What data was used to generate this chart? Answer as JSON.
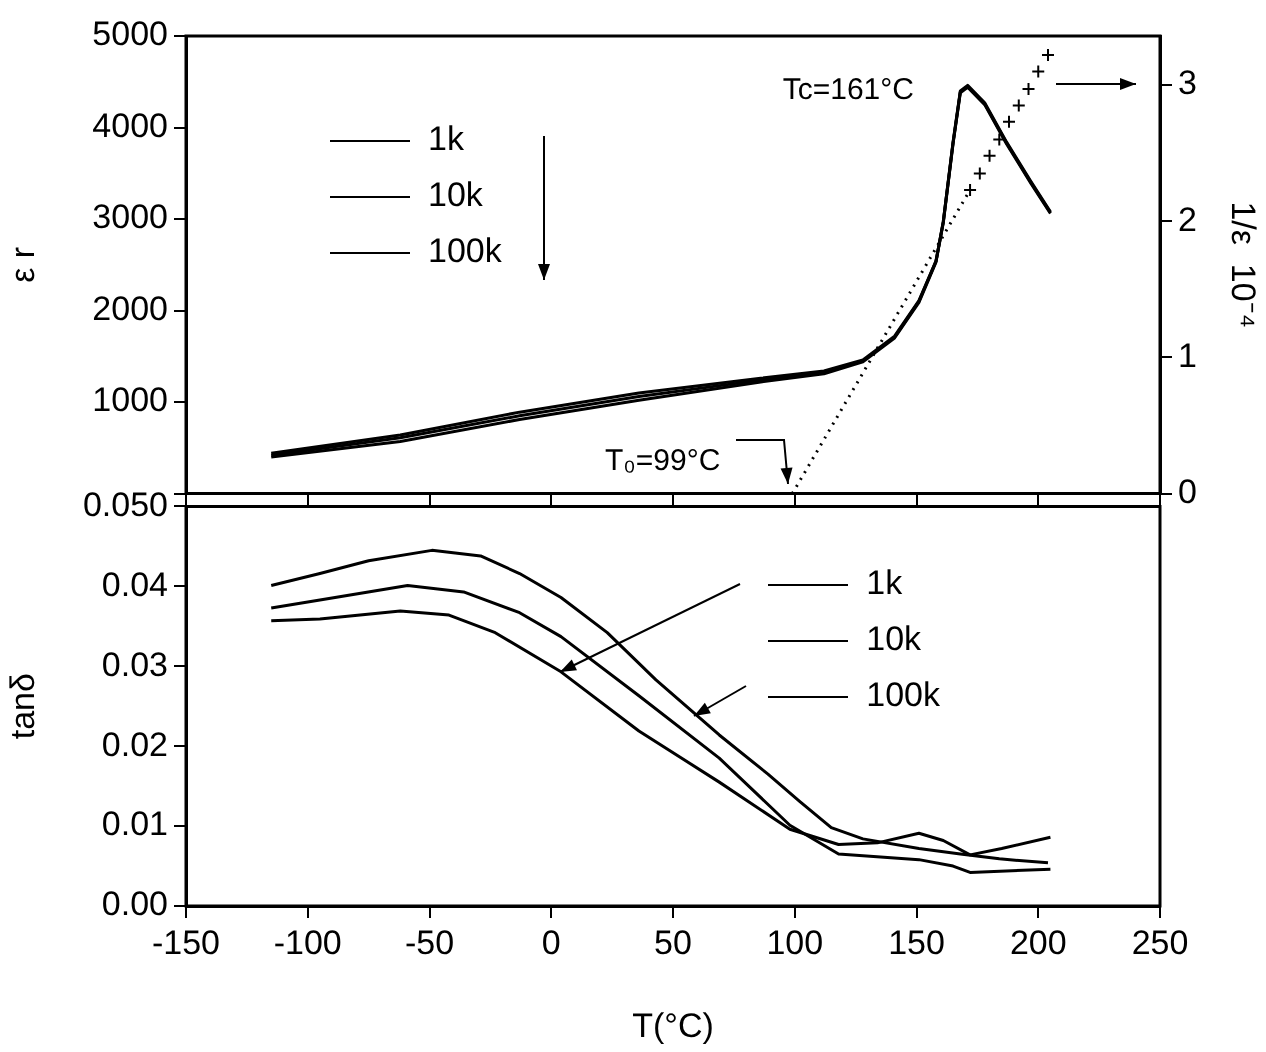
{
  "chart_data": [
    {
      "type": "line",
      "ylabel": "ε r",
      "y2label": "1/ε  10⁻⁴",
      "annotations": [
        "Tc=161°C",
        {
          "text": "T₀=99°C",
          "x": 99,
          "y": 0
        }
      ],
      "xlim": [
        -150,
        250
      ],
      "xticks": [
        -150,
        -100,
        -50,
        0,
        50,
        100,
        150,
        200,
        250
      ],
      "ylim": [
        0,
        5000
      ],
      "yticks": [
        {
          "value": 0,
          "label": null
        },
        1000,
        2000,
        3000,
        4000,
        5000
      ],
      "y2lim": [
        0,
        3.36
      ],
      "y2ticks": [
        0,
        1,
        2,
        3
      ],
      "tick_labels": "y",
      "legend": "top left",
      "series": [
        {
          "name": "1k",
          "color": "#000000",
          "x": [
            -115,
            -62,
            -13,
            36,
            86,
            112,
            128,
            141,
            151,
            158,
            161,
            165,
            168,
            171,
            178,
            187,
            197,
            205
          ],
          "values": [
            440,
            640,
            890,
            1100,
            1260,
            1340,
            1460,
            1720,
            2110,
            2540,
            2970,
            3840,
            4400,
            4460,
            4270,
            3840,
            3410,
            3080
          ]
        },
        {
          "name": "10k",
          "color": "#000000",
          "x": [
            -115,
            -62,
            -13,
            36,
            86,
            112,
            128,
            141,
            151,
            158,
            161,
            165,
            168,
            171,
            178,
            187,
            197,
            205
          ],
          "values": [
            420,
            610,
            850,
            1060,
            1240,
            1320,
            1450,
            1710,
            2100,
            2540,
            2970,
            3830,
            4390,
            4450,
            4260,
            3830,
            3400,
            3070
          ]
        },
        {
          "name": "100k",
          "color": "#000000",
          "x": [
            -115,
            -62,
            -13,
            36,
            86,
            112,
            128,
            141,
            151,
            158,
            161,
            165,
            168,
            171,
            178,
            187,
            197,
            205
          ],
          "values": [
            400,
            570,
            810,
            1020,
            1220,
            1310,
            1440,
            1700,
            2090,
            2530,
            2960,
            3820,
            4380,
            4440,
            4250,
            3820,
            3390,
            3060
          ]
        },
        {
          "type": "line",
          "color": "#000000",
          "axis": "y2",
          "line_style": "dotted",
          "x": [
            99,
            172
          ],
          "values": [
            0,
            2.23
          ]
        },
        {
          "type": "scatter",
          "color": "#000000",
          "axis": "y2",
          "marker": "cross",
          "x": [
            172,
            176,
            180,
            184,
            188,
            192,
            196,
            200,
            204
          ],
          "values": [
            2.23,
            2.35,
            2.48,
            2.6,
            2.73,
            2.85,
            2.97,
            3.1,
            3.22
          ]
        }
      ]
    },
    {
      "type": "line",
      "xlabel": "T(°C)",
      "ylabel": "tanδ",
      "xlim": [
        -150,
        250
      ],
      "xticks": [
        -150,
        -100,
        -50,
        0,
        50,
        100,
        150,
        200,
        250
      ],
      "ylim": [
        0,
        0.05
      ],
      "yticks": [
        {
          "value": 0,
          "label": "0.00"
        },
        {
          "value": 0.01,
          "label": "0.01"
        },
        {
          "value": 0.02,
          "label": "0.02"
        },
        {
          "value": 0.03,
          "label": "0.03"
        },
        {
          "value": 0.04,
          "label": "0.04"
        },
        {
          "value": 0.05,
          "label": "0.050"
        }
      ],
      "legend": "top right",
      "series": [
        {
          "name": "1k",
          "color": "#000000",
          "x": [
            -115,
            -95,
            -62,
            -42,
            -23,
            4,
            36,
            69,
            98,
            118,
            134,
            151,
            161,
            172,
            185,
            205
          ],
          "values": [
            0.0357,
            0.0359,
            0.0369,
            0.0364,
            0.0342,
            0.0293,
            0.0219,
            0.0155,
            0.0096,
            0.0077,
            0.0079,
            0.0091,
            0.0082,
            0.0064,
            0.0072,
            0.0086
          ]
        },
        {
          "name": "10k",
          "color": "#000000",
          "x": [
            -115,
            -95,
            -59,
            -36,
            -13,
            4,
            36,
            69,
            98,
            118,
            151,
            165,
            172,
            205
          ],
          "values": [
            0.0373,
            0.0383,
            0.0401,
            0.0393,
            0.0367,
            0.0337,
            0.0263,
            0.0185,
            0.0101,
            0.0065,
            0.0058,
            0.005,
            0.0042,
            0.0046
          ]
        },
        {
          "name": "100k",
          "color": "#000000",
          "x": [
            -115,
            -95,
            -75,
            -49,
            -29,
            -13,
            4,
            23,
            43,
            69,
            89,
            102,
            115,
            128,
            151,
            168,
            184,
            204
          ],
          "values": [
            0.0401,
            0.0416,
            0.0432,
            0.0445,
            0.0438,
            0.0416,
            0.0386,
            0.0342,
            0.0283,
            0.0214,
            0.0165,
            0.0131,
            0.0098,
            0.0084,
            0.0072,
            0.0065,
            0.0059,
            0.0054
          ]
        }
      ]
    }
  ]
}
